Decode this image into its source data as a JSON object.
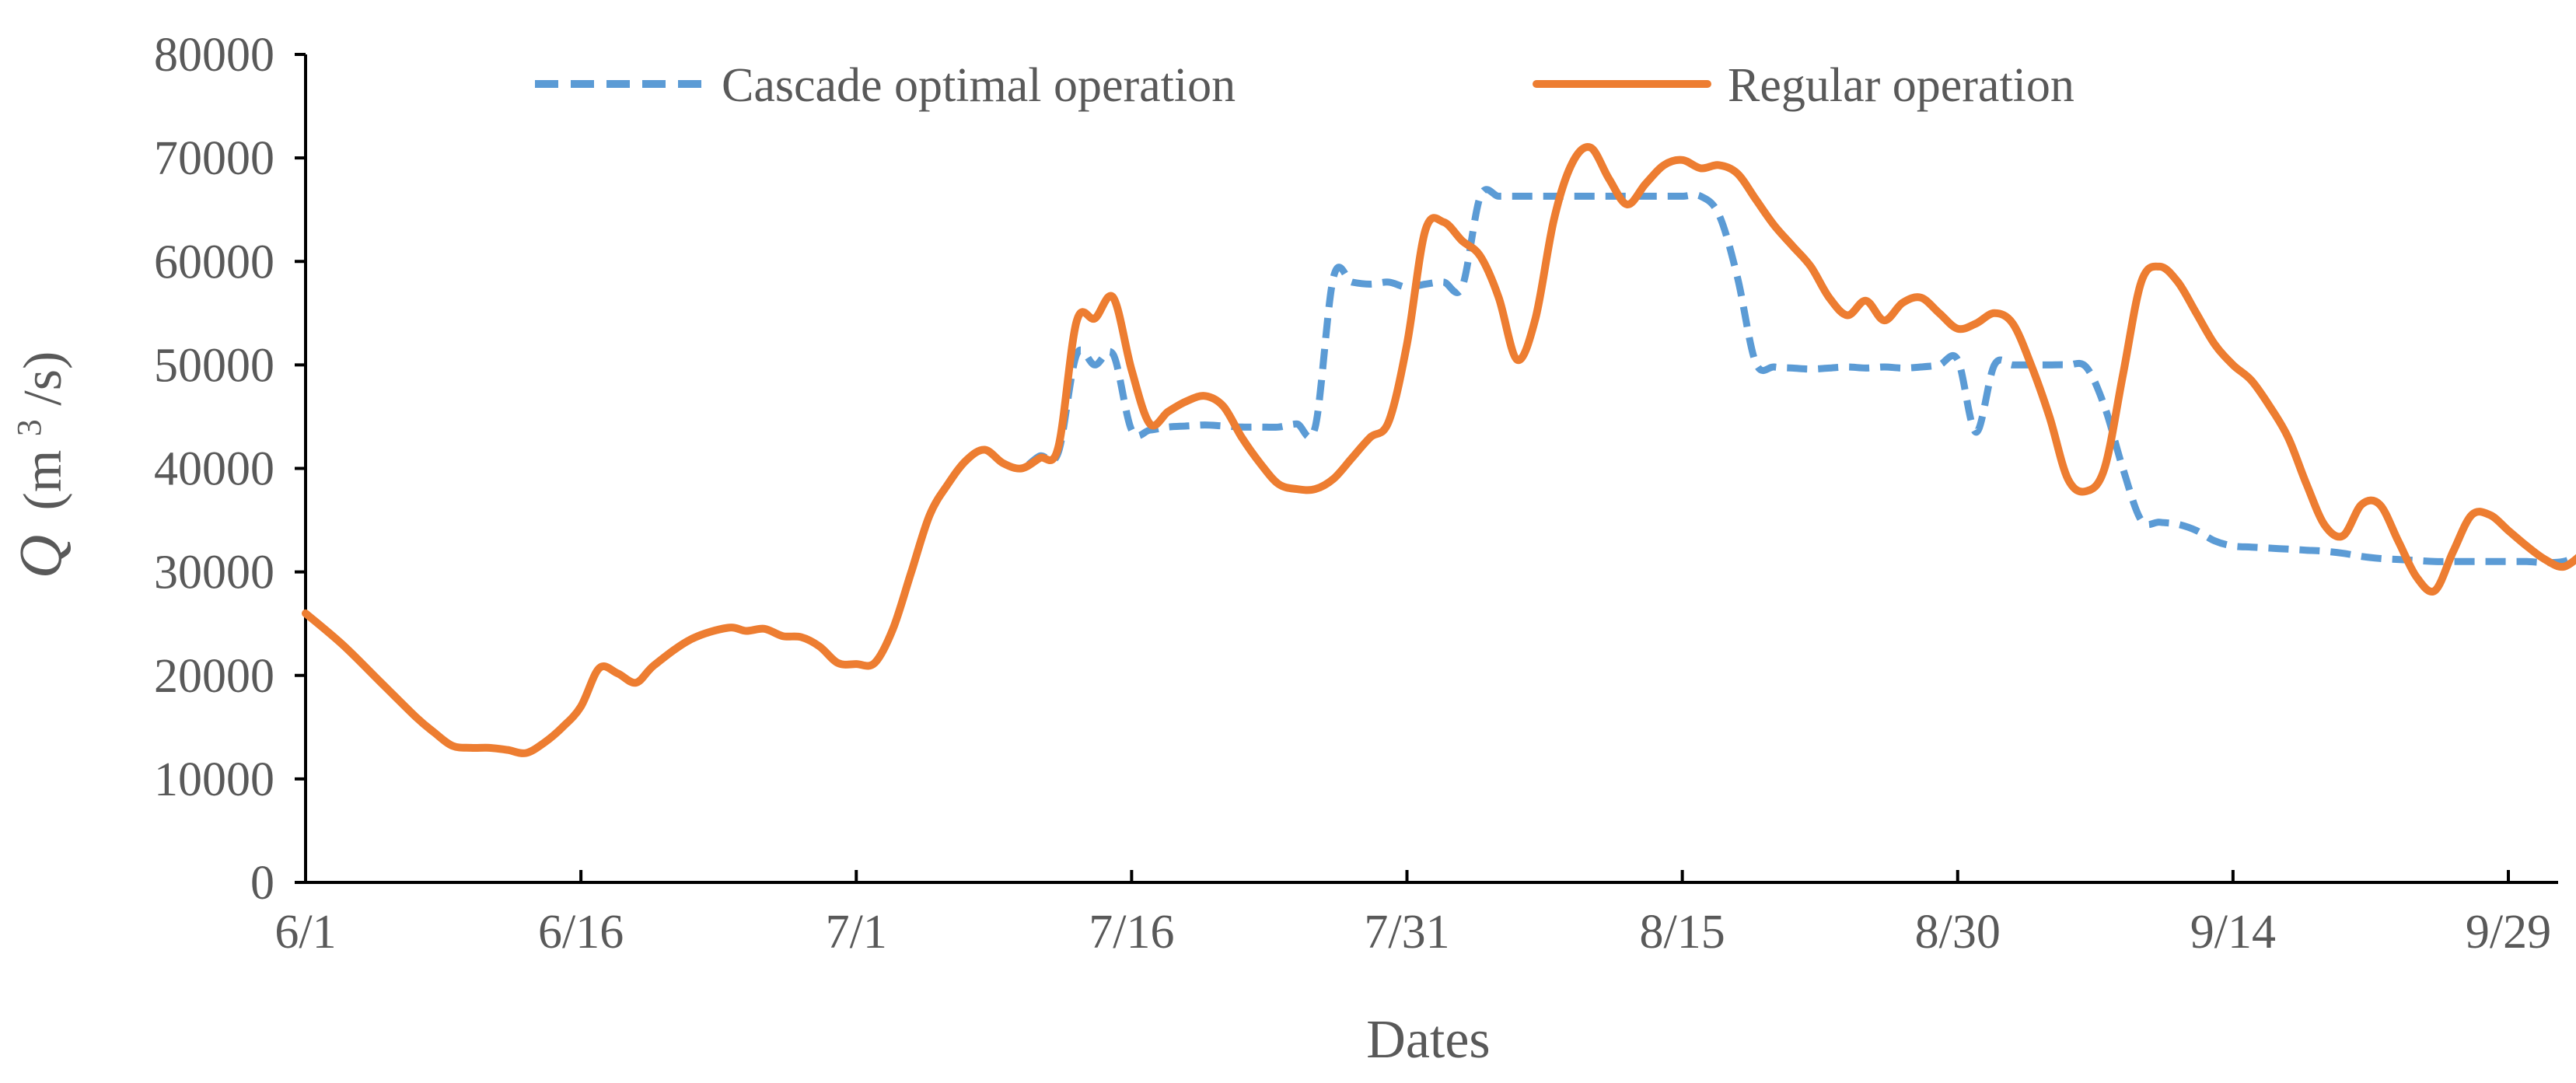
{
  "chart_data": {
    "type": "line",
    "xlabel": "Dates",
    "ylabel": {
      "symbol": "Q",
      "unit_prefix": "(m",
      "unit_power": "3",
      "unit_suffix": "/s)"
    },
    "ylim": [
      0,
      80000
    ],
    "y_ticks": [
      "0",
      "10000",
      "20000",
      "30000",
      "40000",
      "50000",
      "60000",
      "70000",
      "80000"
    ],
    "x_ticks": [
      {
        "label": "6/1",
        "date": "6/1"
      },
      {
        "label": "6/16",
        "date": "6/16"
      },
      {
        "label": "7/1",
        "date": "7/1"
      },
      {
        "label": "7/16",
        "date": "7/16"
      },
      {
        "label": "7/31",
        "date": "7/31"
      },
      {
        "label": "8/15",
        "date": "8/15"
      },
      {
        "label": "8/30",
        "date": "8/30"
      },
      {
        "label": "9/14",
        "date": "9/14"
      },
      {
        "label": "9/29",
        "date": "9/29"
      }
    ],
    "xlim": [
      "6/1",
      "10/3"
    ],
    "grid": false,
    "legend_position": "top",
    "series": [
      {
        "name": "Cascade optimal operation",
        "color": "#5B9BD5",
        "line_style": "dashed",
        "points": [
          [
            "6/1",
            26000
          ],
          [
            "6/3",
            23000
          ],
          [
            "6/5",
            19500
          ],
          [
            "6/7",
            16000
          ],
          [
            "6/8",
            14500
          ],
          [
            "6/9",
            13200
          ],
          [
            "6/10",
            13000
          ],
          [
            "6/11",
            13000
          ],
          [
            "6/12",
            12800
          ],
          [
            "6/13",
            12500
          ],
          [
            "6/14",
            13500
          ],
          [
            "6/15",
            15000
          ],
          [
            "6/16",
            17000
          ],
          [
            "6/17",
            20700
          ],
          [
            "6/18",
            20200
          ],
          [
            "6/19",
            19300
          ],
          [
            "6/20",
            21000
          ],
          [
            "6/22",
            23500
          ],
          [
            "6/24",
            24600
          ],
          [
            "6/25",
            24300
          ],
          [
            "6/26",
            24500
          ],
          [
            "6/27",
            23800
          ],
          [
            "6/28",
            23700
          ],
          [
            "6/29",
            22800
          ],
          [
            "6/30",
            21200
          ],
          [
            "7/1",
            21100
          ],
          [
            "7/2",
            21200
          ],
          [
            "7/3",
            24500
          ],
          [
            "7/4",
            30000
          ],
          [
            "7/5",
            35500
          ],
          [
            "7/6",
            38500
          ],
          [
            "7/7",
            40800
          ],
          [
            "7/8",
            41800
          ],
          [
            "7/9",
            40500
          ],
          [
            "7/10",
            40000
          ],
          [
            "7/11",
            41200
          ],
          [
            "7/12",
            41500
          ],
          [
            "7/13",
            51000
          ],
          [
            "7/14",
            50000
          ],
          [
            "7/15",
            51000
          ],
          [
            "7/16",
            43700
          ],
          [
            "7/17",
            43700
          ],
          [
            "7/18",
            44000
          ],
          [
            "7/19",
            44100
          ],
          [
            "7/20",
            44200
          ],
          [
            "7/21",
            44100
          ],
          [
            "7/22",
            44000
          ],
          [
            "7/23",
            44000
          ],
          [
            "7/24",
            44000
          ],
          [
            "7/25",
            44300
          ],
          [
            "7/26",
            44000
          ],
          [
            "7/27",
            58500
          ],
          [
            "7/28",
            58000
          ],
          [
            "7/29",
            57800
          ],
          [
            "7/30",
            58000
          ],
          [
            "7/31",
            57500
          ],
          [
            "8/1",
            57800
          ],
          [
            "8/2",
            58000
          ],
          [
            "8/3",
            57500
          ],
          [
            "8/4",
            66300
          ],
          [
            "8/5",
            66300
          ],
          [
            "8/6",
            66300
          ],
          [
            "8/7",
            66300
          ],
          [
            "8/8",
            66300
          ],
          [
            "8/9",
            66300
          ],
          [
            "8/10",
            66300
          ],
          [
            "8/11",
            66300
          ],
          [
            "8/12",
            66300
          ],
          [
            "8/13",
            66300
          ],
          [
            "8/14",
            66300
          ],
          [
            "8/15",
            66300
          ],
          [
            "8/16",
            66300
          ],
          [
            "8/17",
            64500
          ],
          [
            "8/18",
            58500
          ],
          [
            "8/19",
            50200
          ],
          [
            "8/20",
            49800
          ],
          [
            "8/21",
            49700
          ],
          [
            "8/22",
            49600
          ],
          [
            "8/23",
            49700
          ],
          [
            "8/24",
            49800
          ],
          [
            "8/25",
            49700
          ],
          [
            "8/26",
            49800
          ],
          [
            "8/27",
            49700
          ],
          [
            "8/28",
            49800
          ],
          [
            "8/29",
            50000
          ],
          [
            "8/30",
            50500
          ],
          [
            "8/31",
            43500
          ],
          [
            "9/1",
            50000
          ],
          [
            "9/2",
            50000
          ],
          [
            "9/3",
            50000
          ],
          [
            "9/4",
            50000
          ],
          [
            "9/5",
            50000
          ],
          [
            "9/6",
            49800
          ],
          [
            "9/7",
            46000
          ],
          [
            "9/8",
            40000
          ],
          [
            "9/9",
            35000
          ],
          [
            "9/10",
            34800
          ],
          [
            "9/11",
            34600
          ],
          [
            "9/12",
            34000
          ],
          [
            "9/13",
            33000
          ],
          [
            "9/14",
            32500
          ],
          [
            "9/15",
            32400
          ],
          [
            "9/16",
            32300
          ],
          [
            "9/17",
            32200
          ],
          [
            "9/18",
            32100
          ],
          [
            "9/19",
            32000
          ],
          [
            "9/20",
            31800
          ],
          [
            "9/21",
            31500
          ],
          [
            "9/22",
            31300
          ],
          [
            "9/23",
            31200
          ],
          [
            "9/24",
            31100
          ],
          [
            "9/25",
            31000
          ],
          [
            "9/26",
            31000
          ],
          [
            "9/27",
            31000
          ],
          [
            "9/28",
            31000
          ],
          [
            "9/29",
            31000
          ],
          [
            "9/30",
            31000
          ],
          [
            "10/1",
            30900
          ],
          [
            "10/2",
            31000
          ],
          [
            "10/3",
            31700
          ]
        ]
      },
      {
        "name": "Regular operation",
        "color": "#ED7D31",
        "line_style": "solid",
        "points": [
          [
            "6/1",
            26000
          ],
          [
            "6/3",
            23000
          ],
          [
            "6/5",
            19500
          ],
          [
            "6/7",
            16000
          ],
          [
            "6/8",
            14500
          ],
          [
            "6/9",
            13200
          ],
          [
            "6/10",
            13000
          ],
          [
            "6/11",
            13000
          ],
          [
            "6/12",
            12800
          ],
          [
            "6/13",
            12500
          ],
          [
            "6/14",
            13500
          ],
          [
            "6/15",
            15000
          ],
          [
            "6/16",
            17000
          ],
          [
            "6/17",
            20700
          ],
          [
            "6/18",
            20200
          ],
          [
            "6/19",
            19300
          ],
          [
            "6/20",
            21000
          ],
          [
            "6/22",
            23500
          ],
          [
            "6/24",
            24600
          ],
          [
            "6/25",
            24300
          ],
          [
            "6/26",
            24500
          ],
          [
            "6/27",
            23800
          ],
          [
            "6/28",
            23700
          ],
          [
            "6/29",
            22800
          ],
          [
            "6/30",
            21200
          ],
          [
            "7/1",
            21100
          ],
          [
            "7/2",
            21200
          ],
          [
            "7/3",
            24500
          ],
          [
            "7/4",
            30000
          ],
          [
            "7/5",
            35500
          ],
          [
            "7/6",
            38500
          ],
          [
            "7/7",
            40800
          ],
          [
            "7/8",
            41800
          ],
          [
            "7/9",
            40500
          ],
          [
            "7/10",
            40000
          ],
          [
            "7/11",
            41000
          ],
          [
            "7/12",
            42000
          ],
          [
            "7/13",
            54200
          ],
          [
            "7/14",
            54500
          ],
          [
            "7/15",
            56500
          ],
          [
            "7/16",
            49500
          ],
          [
            "7/17",
            44300
          ],
          [
            "7/18",
            45500
          ],
          [
            "7/19",
            46500
          ],
          [
            "7/20",
            47000
          ],
          [
            "7/21",
            46000
          ],
          [
            "7/22",
            43000
          ],
          [
            "7/23",
            40500
          ],
          [
            "7/24",
            38500
          ],
          [
            "7/25",
            38000
          ],
          [
            "7/26",
            38000
          ],
          [
            "7/27",
            39000
          ],
          [
            "7/28",
            41000
          ],
          [
            "7/29",
            43000
          ],
          [
            "7/30",
            44500
          ],
          [
            "7/31",
            52000
          ],
          [
            "8/1",
            63000
          ],
          [
            "8/2",
            63800
          ],
          [
            "8/3",
            62000
          ],
          [
            "8/4",
            60500
          ],
          [
            "8/5",
            56500
          ],
          [
            "8/6",
            50500
          ],
          [
            "8/7",
            54500
          ],
          [
            "8/8",
            64000
          ],
          [
            "8/9",
            69500
          ],
          [
            "8/10",
            71000
          ],
          [
            "8/11",
            68000
          ],
          [
            "8/12",
            65500
          ],
          [
            "8/13",
            67500
          ],
          [
            "8/14",
            69300
          ],
          [
            "8/15",
            69800
          ],
          [
            "8/16",
            69000
          ],
          [
            "8/17",
            69300
          ],
          [
            "8/18",
            68500
          ],
          [
            "8/19",
            66000
          ],
          [
            "8/20",
            63500
          ],
          [
            "8/21",
            61500
          ],
          [
            "8/22",
            59500
          ],
          [
            "8/23",
            56500
          ],
          [
            "8/24",
            54800
          ],
          [
            "8/25",
            56200
          ],
          [
            "8/26",
            54300
          ],
          [
            "8/27",
            56000
          ],
          [
            "8/28",
            56500
          ],
          [
            "8/29",
            55000
          ],
          [
            "8/30",
            53500
          ],
          [
            "8/31",
            54000
          ],
          [
            "9/1",
            55000
          ],
          [
            "9/2",
            54000
          ],
          [
            "9/3",
            50000
          ],
          [
            "9/4",
            45000
          ],
          [
            "9/5",
            39000
          ],
          [
            "9/6",
            37800
          ],
          [
            "9/7",
            40000
          ],
          [
            "9/8",
            49000
          ],
          [
            "9/9",
            58000
          ],
          [
            "9/10",
            59500
          ],
          [
            "9/11",
            58000
          ],
          [
            "9/12",
            55000
          ],
          [
            "9/13",
            52000
          ],
          [
            "9/14",
            50000
          ],
          [
            "9/15",
            48500
          ],
          [
            "9/16",
            46000
          ],
          [
            "9/17",
            43000
          ],
          [
            "9/18",
            38500
          ],
          [
            "9/19",
            34500
          ],
          [
            "9/20",
            33500
          ],
          [
            "9/21",
            36500
          ],
          [
            "9/22",
            36500
          ],
          [
            "9/23",
            33000
          ],
          [
            "9/24",
            29500
          ],
          [
            "9/25",
            28200
          ],
          [
            "9/26",
            32000
          ],
          [
            "9/27",
            35500
          ],
          [
            "9/28",
            35500
          ],
          [
            "9/29",
            34000
          ],
          [
            "9/30",
            32500
          ],
          [
            "10/1",
            31200
          ],
          [
            "10/2",
            30500
          ],
          [
            "10/3",
            31700
          ]
        ]
      }
    ]
  }
}
